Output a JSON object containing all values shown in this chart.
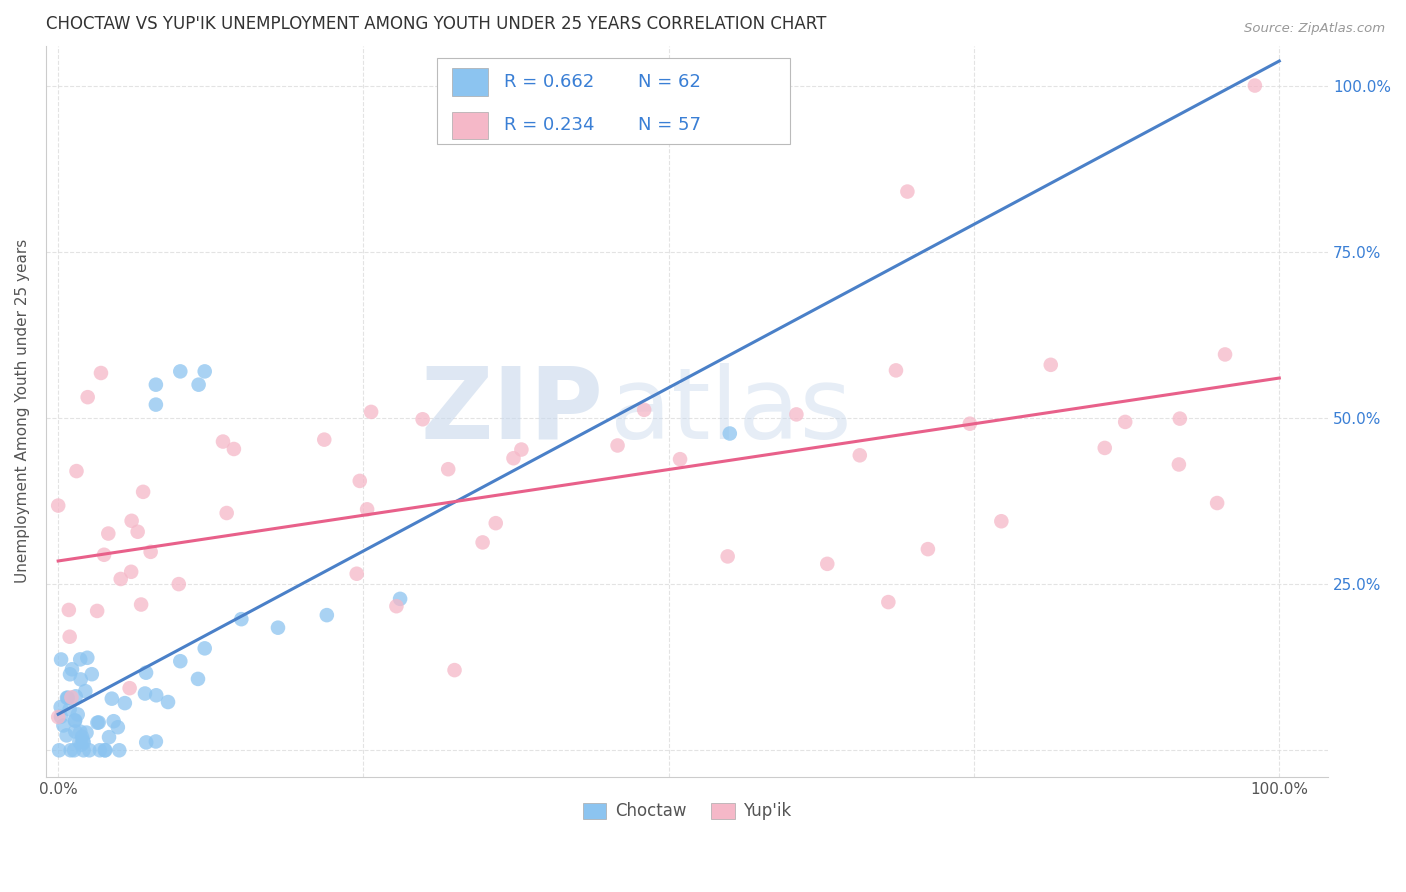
{
  "title": "CHOCTAW VS YUP'IK UNEMPLOYMENT AMONG YOUTH UNDER 25 YEARS CORRELATION CHART",
  "source": "Source: ZipAtlas.com",
  "ylabel": "Unemployment Among Youth under 25 years",
  "choctaw_color": "#8cc4f0",
  "yupik_color": "#f5b8c8",
  "choctaw_line_color": "#4a80c8",
  "yupik_line_color": "#e8608a",
  "choctaw_R": 0.662,
  "choctaw_N": 62,
  "yupik_R": 0.234,
  "yupik_N": 57,
  "background_color": "#ffffff",
  "grid_color": "#dddddd",
  "watermark_zip": "ZIP",
  "watermark_atlas": "atlas",
  "title_color": "#333333",
  "label_color": "#555555",
  "r_color": "#3a7fd5",
  "source_color": "#999999"
}
